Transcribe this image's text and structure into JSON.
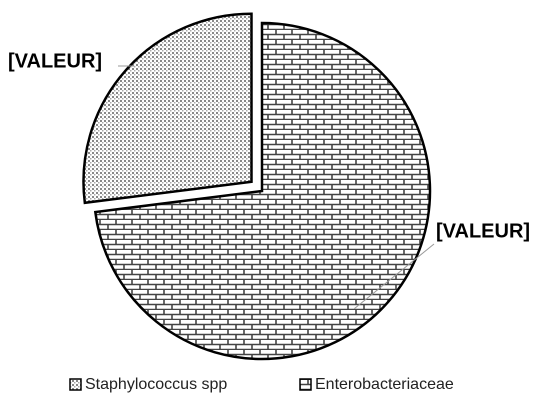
{
  "chart_data": {
    "type": "pie",
    "categories": [
      "Staphylococcus spp",
      "Enterobacteriaceae"
    ],
    "values": [
      27,
      73
    ],
    "value_labels": [
      "[VALEUR]",
      "[VALEUR]"
    ],
    "legend": "bottom"
  }
}
